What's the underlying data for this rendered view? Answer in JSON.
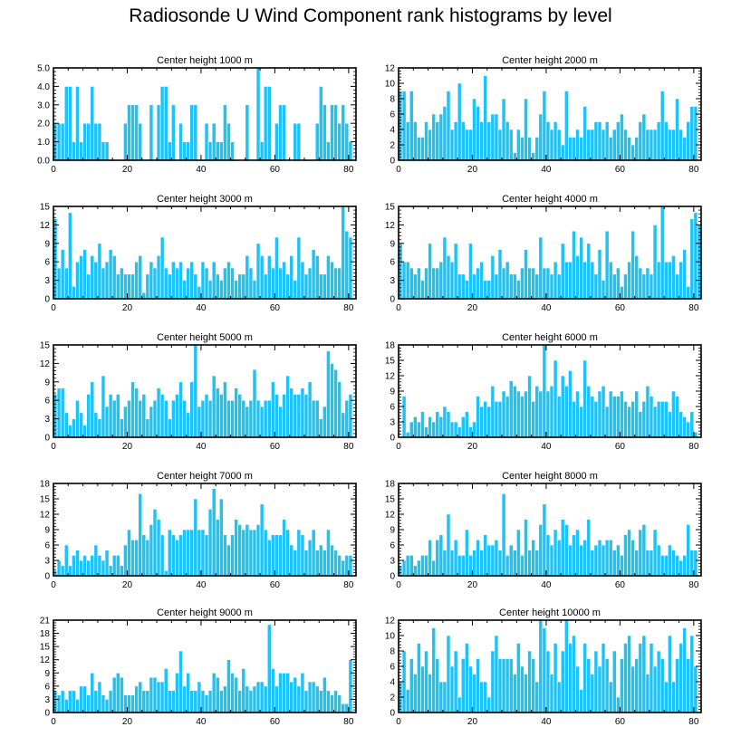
{
  "title": "Radiosonde U Wind Component rank histograms by level",
  "colors": {
    "bar": "#1ec2f4",
    "bar_edge": "#ffffff",
    "axis": "#000000"
  },
  "chart_data": [
    {
      "type": "bar",
      "title": "Center height 1000 m",
      "xlabel": "",
      "ylabel": "",
      "xlim": [
        0,
        82
      ],
      "ylim": [
        0,
        5
      ],
      "x_ticks": [
        0,
        20,
        40,
        60,
        80
      ],
      "y_ticks": [
        0,
        1,
        2,
        3,
        4,
        5
      ],
      "y_tick_labels": [
        "0.0",
        "1.0",
        "2.0",
        "3.0",
        "4.0",
        "5.0"
      ],
      "values": [
        2,
        2,
        2,
        4,
        4,
        1,
        4,
        1,
        2,
        2,
        4,
        2,
        2,
        1,
        1,
        0,
        0,
        0,
        0,
        2,
        3,
        3,
        3,
        2,
        0,
        0,
        3,
        0,
        3,
        4,
        4,
        1,
        3,
        0,
        2,
        1,
        1,
        3,
        3,
        0,
        0,
        2,
        1,
        2,
        1,
        1,
        3,
        2,
        1,
        0,
        0,
        0,
        3,
        0,
        0,
        5,
        1,
        4,
        4,
        0,
        2,
        3,
        3,
        0,
        0,
        2,
        2,
        0,
        0,
        0,
        0,
        2,
        4,
        3,
        1,
        3,
        3,
        2,
        3,
        2,
        1
      ]
    },
    {
      "type": "bar",
      "title": "Center height 2000 m",
      "xlabel": "",
      "ylabel": "",
      "xlim": [
        0,
        82
      ],
      "ylim": [
        0,
        12
      ],
      "x_ticks": [
        0,
        20,
        40,
        60,
        80
      ],
      "y_ticks": [
        0,
        2,
        4,
        6,
        8,
        10,
        12
      ],
      "y_tick_labels": [
        "0",
        "2",
        "4",
        "6",
        "8",
        "10",
        "12"
      ],
      "values": [
        9,
        9,
        5,
        9,
        5,
        3,
        3,
        5,
        4,
        6,
        5,
        6,
        7,
        9,
        4,
        5,
        10,
        5,
        4,
        4,
        8,
        7,
        5,
        11,
        5,
        6,
        6,
        4,
        8,
        5,
        4,
        1,
        4,
        3,
        8,
        3,
        1,
        3,
        6,
        9,
        5,
        4,
        5,
        4,
        2,
        9,
        3,
        3,
        4,
        3,
        7,
        4,
        4,
        5,
        5,
        4,
        5,
        3,
        4,
        5,
        6,
        4,
        3,
        2,
        3,
        5,
        6,
        4,
        4,
        4,
        5,
        9,
        5,
        4,
        4,
        8,
        4,
        3,
        5,
        7,
        7
      ]
    },
    {
      "type": "bar",
      "title": "Center height 3000 m",
      "xlabel": "",
      "ylabel": "",
      "xlim": [
        0,
        82
      ],
      "ylim": [
        0,
        15
      ],
      "x_ticks": [
        0,
        20,
        40,
        60,
        80
      ],
      "y_ticks": [
        0,
        3,
        6,
        9,
        12,
        15
      ],
      "y_tick_labels": [
        "0",
        "3",
        "6",
        "9",
        "12",
        "15"
      ],
      "values": [
        13,
        5,
        8,
        5,
        14,
        2,
        6,
        7,
        8,
        4,
        7,
        6,
        9,
        5,
        6,
        8,
        7,
        4,
        5,
        4,
        4,
        4,
        6,
        7,
        1,
        4,
        6,
        5,
        7,
        10,
        5,
        4,
        6,
        5,
        6,
        3,
        5,
        6,
        4,
        2,
        6,
        5,
        3,
        6,
        4,
        3,
        5,
        6,
        5,
        3,
        4,
        4,
        7,
        5,
        3,
        9,
        7,
        4,
        7,
        5,
        10,
        5,
        6,
        4,
        7,
        3,
        10,
        6,
        4,
        5,
        8,
        7,
        4,
        4,
        7,
        6,
        5,
        5,
        15,
        11,
        10
      ]
    },
    {
      "type": "bar",
      "title": "Center height 4000 m",
      "xlabel": "",
      "ylabel": "",
      "xlim": [
        0,
        82
      ],
      "ylim": [
        0,
        15
      ],
      "x_ticks": [
        0,
        20,
        40,
        60,
        80
      ],
      "y_ticks": [
        0,
        3,
        6,
        9,
        12,
        15
      ],
      "y_tick_labels": [
        "0",
        "3",
        "6",
        "9",
        "12",
        "15"
      ],
      "values": [
        9,
        6,
        6,
        5,
        4,
        5,
        3,
        5,
        9,
        5,
        5,
        6,
        10,
        7,
        6,
        9,
        4,
        4,
        3,
        9,
        4,
        5,
        6,
        3,
        3,
        7,
        4,
        8,
        5,
        6,
        4,
        4,
        3,
        5,
        8,
        5,
        5,
        4,
        10,
        5,
        5,
        4,
        6,
        4,
        9,
        6,
        6,
        11,
        7,
        10,
        6,
        9,
        6,
        4,
        8,
        3,
        11,
        6,
        4,
        5,
        2,
        4,
        6,
        11,
        7,
        5,
        4,
        5,
        4,
        12,
        6,
        15,
        6,
        6,
        7,
        4,
        6,
        8,
        2,
        13,
        14,
        12
      ]
    },
    {
      "type": "bar",
      "title": "Center height 5000 m",
      "xlabel": "",
      "ylabel": "",
      "xlim": [
        0,
        82
      ],
      "ylim": [
        0,
        15
      ],
      "x_ticks": [
        0,
        20,
        40,
        60,
        80
      ],
      "y_ticks": [
        0,
        3,
        6,
        9,
        12,
        15
      ],
      "y_tick_labels": [
        "0",
        "3",
        "6",
        "9",
        "12",
        "15"
      ],
      "values": [
        7,
        8,
        8,
        4,
        2,
        3,
        6,
        4,
        2,
        7,
        9,
        4,
        3,
        10,
        5,
        7,
        6,
        7,
        3,
        5,
        6,
        9,
        8,
        6,
        7,
        3,
        5,
        6,
        8,
        7,
        6,
        3,
        6,
        7,
        9,
        6,
        4,
        9,
        15,
        5,
        6,
        7,
        6,
        10,
        8,
        7,
        9,
        6,
        6,
        8,
        7,
        6,
        5,
        6,
        11,
        6,
        5,
        6,
        6,
        9,
        7,
        5,
        7,
        10,
        8,
        7,
        7,
        8,
        7,
        9,
        6,
        6,
        3,
        5,
        14,
        12,
        11,
        9,
        4,
        6,
        7
      ]
    },
    {
      "type": "bar",
      "title": "Center height 6000 m",
      "xlabel": "",
      "ylabel": "",
      "xlim": [
        0,
        82
      ],
      "ylim": [
        0,
        18
      ],
      "x_ticks": [
        0,
        20,
        40,
        60,
        80
      ],
      "y_ticks": [
        0,
        3,
        6,
        9,
        12,
        15,
        18
      ],
      "y_tick_labels": [
        "0",
        "3",
        "6",
        "9",
        "12",
        "15",
        "18"
      ],
      "values": [
        0,
        8,
        1,
        3,
        4,
        3,
        5,
        2,
        4,
        3,
        5,
        4,
        6,
        5,
        3,
        3,
        2,
        4,
        5,
        2,
        3,
        8,
        6,
        7,
        6,
        10,
        7,
        7,
        9,
        8,
        11,
        10,
        9,
        8,
        9,
        12,
        7,
        10,
        9,
        18,
        9,
        10,
        15,
        8,
        12,
        10,
        13,
        7,
        9,
        6,
        15,
        10,
        8,
        7,
        9,
        10,
        6,
        9,
        8,
        8,
        9,
        7,
        6,
        7,
        9,
        5,
        7,
        10,
        8,
        6,
        7,
        7,
        7,
        5,
        9,
        8,
        5,
        4,
        3,
        5,
        1
      ]
    },
    {
      "type": "bar",
      "title": "Center height 7000 m",
      "xlabel": "",
      "ylabel": "",
      "xlim": [
        0,
        82
      ],
      "ylim": [
        0,
        18
      ],
      "x_ticks": [
        0,
        20,
        40,
        60,
        80
      ],
      "y_ticks": [
        0,
        3,
        6,
        9,
        12,
        15,
        18
      ],
      "y_tick_labels": [
        "0",
        "3",
        "6",
        "9",
        "12",
        "15",
        "18"
      ],
      "values": [
        1,
        3,
        2,
        6,
        2,
        4,
        5,
        3,
        4,
        3,
        4,
        6,
        4,
        3,
        5,
        2,
        4,
        4,
        2,
        6,
        9,
        7,
        7,
        16,
        8,
        7,
        10,
        13,
        11,
        8,
        1,
        9,
        8,
        7,
        8,
        9,
        9,
        9,
        15,
        9,
        9,
        8,
        13,
        17,
        11,
        15,
        8,
        6,
        8,
        11,
        10,
        9,
        10,
        9,
        9,
        10,
        14,
        9,
        7,
        8,
        8,
        8,
        11,
        9,
        6,
        5,
        9,
        8,
        5,
        7,
        9,
        5,
        6,
        5,
        9,
        6,
        5,
        4,
        3,
        4,
        4
      ]
    },
    {
      "type": "bar",
      "title": "Center height 8000 m",
      "xlabel": "",
      "ylabel": "",
      "xlim": [
        0,
        82
      ],
      "ylim": [
        0,
        18
      ],
      "x_ticks": [
        0,
        20,
        40,
        60,
        80
      ],
      "y_ticks": [
        0,
        3,
        6,
        9,
        12,
        15,
        18
      ],
      "y_tick_labels": [
        "0",
        "3",
        "6",
        "9",
        "12",
        "15",
        "18"
      ],
      "values": [
        2,
        3,
        4,
        4,
        2,
        3,
        4,
        4,
        7,
        3,
        7,
        8,
        5,
        12,
        5,
        7,
        4,
        4,
        9,
        4,
        5,
        7,
        5,
        8,
        6,
        6,
        7,
        5,
        16,
        4,
        6,
        5,
        9,
        4,
        11,
        5,
        7,
        5,
        10,
        14,
        8,
        6,
        9,
        7,
        11,
        10,
        6,
        8,
        9,
        6,
        7,
        11,
        5,
        6,
        7,
        6,
        7,
        7,
        5,
        6,
        4,
        8,
        9,
        7,
        5,
        9,
        10,
        5,
        5,
        9,
        6,
        4,
        4,
        6,
        5,
        4,
        3,
        4,
        10,
        5,
        5
      ]
    },
    {
      "type": "bar",
      "title": "Center height 9000 m",
      "xlabel": "",
      "ylabel": "",
      "xlim": [
        0,
        82
      ],
      "ylim": [
        0,
        21
      ],
      "x_ticks": [
        0,
        20,
        40,
        60,
        80
      ],
      "y_ticks": [
        0,
        3,
        6,
        9,
        12,
        15,
        18,
        21
      ],
      "y_tick_labels": [
        "0",
        "3",
        "6",
        "9",
        "12",
        "15",
        "18",
        "21"
      ],
      "values": [
        5,
        4,
        5,
        3,
        5,
        5,
        3,
        6,
        6,
        4,
        9,
        5,
        7,
        4,
        3,
        5,
        8,
        9,
        8,
        4,
        4,
        4,
        6,
        7,
        5,
        5,
        8,
        8,
        7,
        7,
        10,
        5,
        5,
        9,
        14,
        6,
        9,
        5,
        5,
        7,
        5,
        4,
        5,
        9,
        8,
        5,
        6,
        12,
        9,
        8,
        5,
        10,
        6,
        5,
        6,
        7,
        7,
        6,
        20,
        10,
        6,
        9,
        9,
        9,
        7,
        8,
        6,
        9,
        5,
        7,
        7,
        6,
        5,
        8,
        5,
        4,
        5,
        4,
        2,
        2,
        12
      ]
    },
    {
      "type": "bar",
      "title": "Center height 10000 m",
      "xlabel": "",
      "ylabel": "",
      "xlim": [
        0,
        82
      ],
      "ylim": [
        0,
        12
      ],
      "x_ticks": [
        0,
        20,
        40,
        60,
        80
      ],
      "y_ticks": [
        0,
        2,
        4,
        6,
        8,
        10,
        12
      ],
      "y_tick_labels": [
        "0",
        "2",
        "4",
        "6",
        "8",
        "10",
        "12"
      ],
      "values": [
        4,
        8,
        3,
        7,
        5,
        9,
        6,
        8,
        5,
        11,
        7,
        4,
        4,
        10,
        6,
        8,
        2,
        7,
        9,
        6,
        5,
        7,
        4,
        4,
        2,
        8,
        10,
        7,
        7,
        7,
        7,
        5,
        9,
        6,
        5,
        8,
        7,
        4,
        12,
        11,
        8,
        5,
        9,
        4,
        8,
        12,
        9,
        10,
        6,
        3,
        9,
        7,
        5,
        8,
        6,
        9,
        7,
        4,
        8,
        2,
        7,
        9,
        10,
        6,
        7,
        9,
        10,
        5,
        9,
        6,
        8,
        7,
        4,
        10,
        4,
        7,
        9,
        11,
        7,
        10,
        6
      ]
    }
  ]
}
